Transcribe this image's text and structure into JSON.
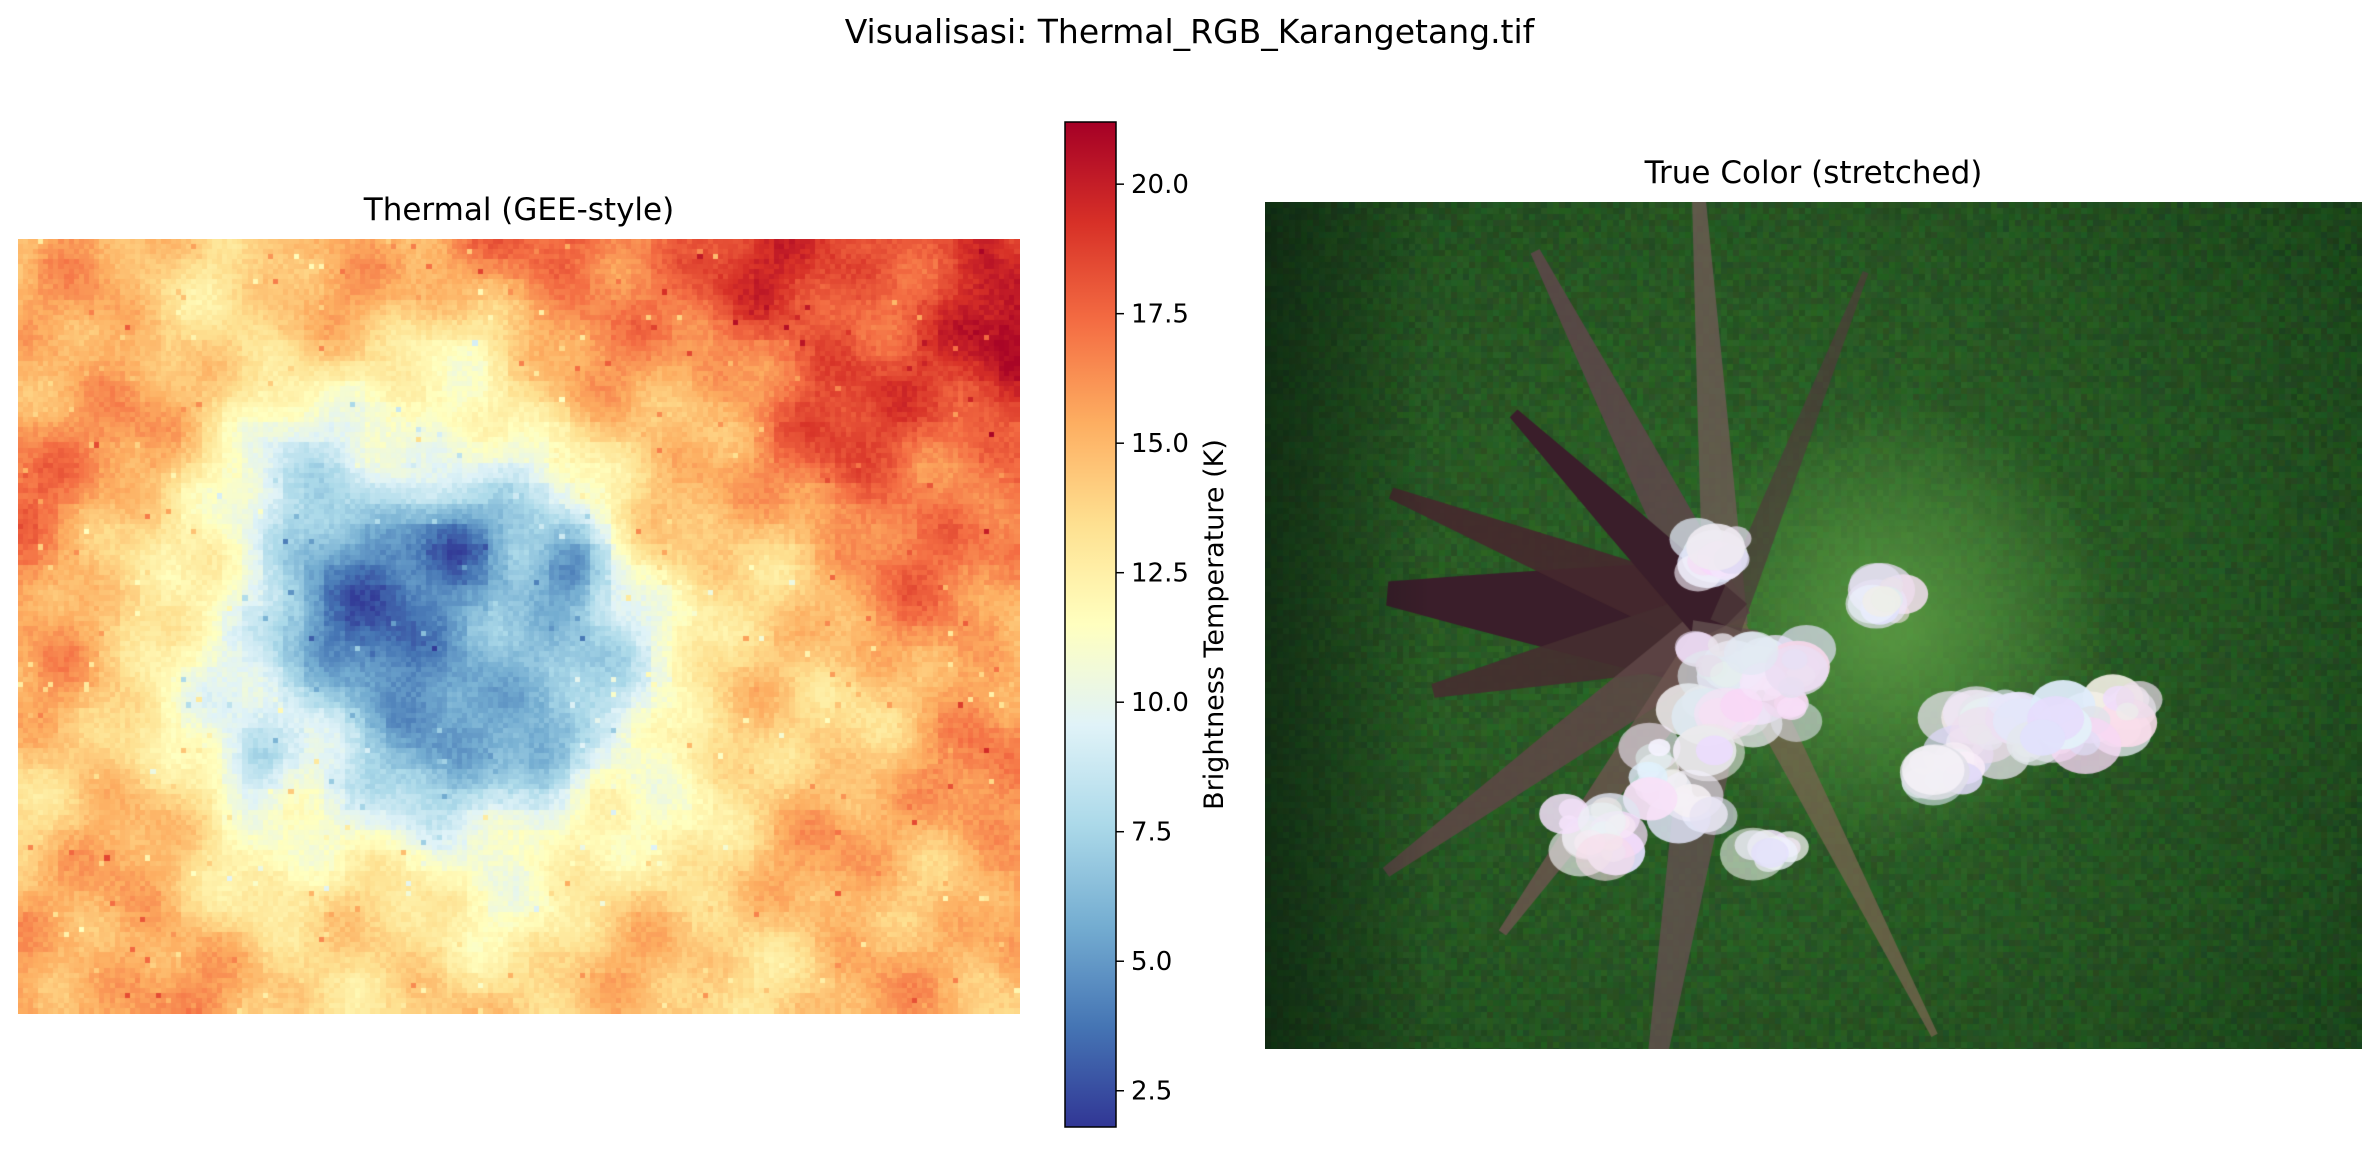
{
  "figure": {
    "suptitle": "Visualisasi: Thermal_RGB_Karangetang.tif"
  },
  "chart_data": [
    {
      "type": "heatmap",
      "title": "Thermal (GEE-style)",
      "colormap": "RdYlBu_r",
      "axes_visible": false,
      "colorbar": {
        "label": "Brightness Temperature (K)",
        "vmin": 1.8,
        "vmax": 21.2,
        "ticks": [
          2.5,
          5.0,
          7.5,
          10.0,
          12.5,
          15.0,
          17.5,
          20.0
        ],
        "tick_labels": [
          "2.5",
          "5.0",
          "7.5",
          "10.0",
          "12.5",
          "15.0",
          "17.5",
          "20.0"
        ]
      },
      "value_range": [
        1.8,
        21.2
      ],
      "grid_shape": [
        152,
        196
      ],
      "cold_zones": [
        {
          "cx": 0.52,
          "cy": 0.67,
          "value": 2.0
        },
        {
          "cx": 0.23,
          "cy": 0.67,
          "value": 3.2
        },
        {
          "cx": 0.43,
          "cy": 0.38,
          "value": 6.0
        },
        {
          "cx": 0.55,
          "cy": 0.42,
          "value": 6.5
        }
      ]
    },
    {
      "type": "heatmap",
      "title": "True Color (stretched)",
      "mode": "rgb_image",
      "axes_visible": false,
      "features": [
        "dense green forest",
        "dark purple-brown lava flows radiating from summit",
        "white cloud patches near summit and eastern slope"
      ]
    }
  ],
  "colors": {
    "rdylbu_r_stops": [
      "#313695",
      "#4575b4",
      "#74add1",
      "#abd9e9",
      "#e0f3f8",
      "#ffffbf",
      "#fee090",
      "#fdae61",
      "#f46d43",
      "#d73027",
      "#a50026"
    ],
    "forest_dark": "#0f2a14",
    "forest": "#2c5a2a",
    "lava": "#3a1e2a",
    "cloud": "#e8e6f0"
  }
}
